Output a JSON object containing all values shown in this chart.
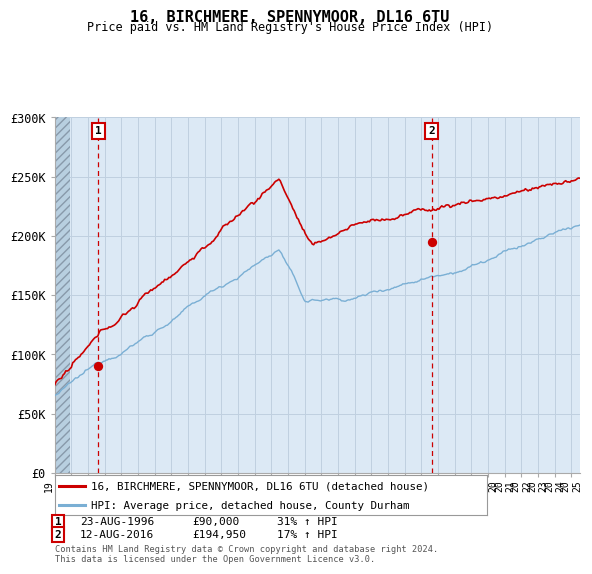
{
  "title": "16, BIRCHMERE, SPENNYMOOR, DL16 6TU",
  "subtitle": "Price paid vs. HM Land Registry's House Price Index (HPI)",
  "legend_line1": "16, BIRCHMERE, SPENNYMOOR, DL16 6TU (detached house)",
  "legend_line2": "HPI: Average price, detached house, County Durham",
  "footer": "Contains HM Land Registry data © Crown copyright and database right 2024.\nThis data is licensed under the Open Government Licence v3.0.",
  "sale1_year": 1996.62,
  "sale1_price": 90000,
  "sale2_year": 2016.62,
  "sale2_price": 194950,
  "xmin": 1994,
  "xmax": 2025.5,
  "ymin": 0,
  "ymax": 300000,
  "yticks": [
    0,
    50000,
    100000,
    150000,
    200000,
    250000,
    300000
  ],
  "ytick_labels": [
    "£0",
    "£50K",
    "£100K",
    "£150K",
    "£200K",
    "£250K",
    "£300K"
  ],
  "plot_bg": "#dce9f5",
  "hatch_color": "#b8cfe0",
  "red_line_color": "#cc0000",
  "blue_line_color": "#7aafd4",
  "dashed_line_color": "#cc0000",
  "grid_color": "#c0d0e0",
  "hatch_end_year": 1994.92
}
